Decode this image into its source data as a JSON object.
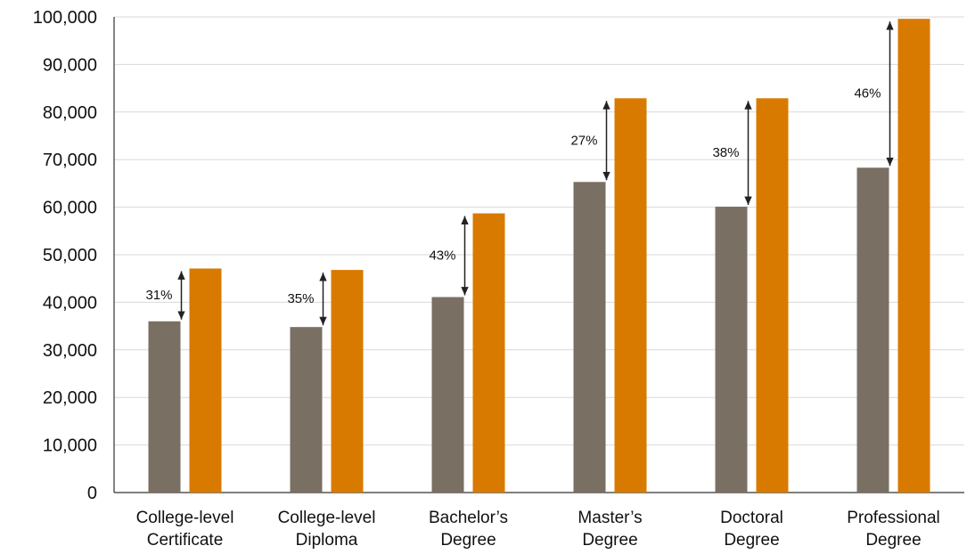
{
  "chart_data": {
    "type": "bar",
    "categories": [
      [
        "College-level",
        "Certificate"
      ],
      [
        "College-level",
        "Diploma"
      ],
      [
        "Bachelor’s",
        "Degree"
      ],
      [
        "Master’s",
        "Degree"
      ],
      [
        "Doctoral",
        "Degree"
      ],
      [
        "Professional",
        "Degree"
      ]
    ],
    "series": [
      {
        "color": "#7a6f63",
        "values": [
          36000,
          34800,
          41100,
          65300,
          60100,
          68300
        ]
      },
      {
        "color": "#d97a00",
        "values": [
          47100,
          46800,
          58700,
          82900,
          82900,
          99600
        ]
      }
    ],
    "annotations": [
      "31%",
      "35%",
      "43%",
      "27%",
      "38%",
      "46%"
    ],
    "ylim": [
      0,
      100000
    ],
    "yticks": [
      0,
      10000,
      20000,
      30000,
      40000,
      50000,
      60000,
      70000,
      80000,
      90000,
      100000
    ],
    "ytick_labels": [
      "0",
      "10,000",
      "20,000",
      "30,000",
      "40,000",
      "50,000",
      "60,000",
      "70,000",
      "80,000",
      "90,000",
      "100,000"
    ],
    "grid": true,
    "legend": "none"
  }
}
